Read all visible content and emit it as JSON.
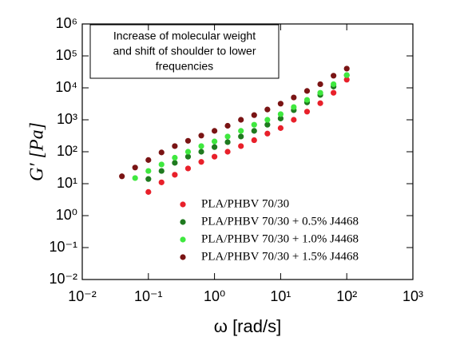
{
  "chart_data": {
    "type": "scatter",
    "x_label": "ω [rad/s]",
    "y_label": "G′ [Pa]",
    "annotation": [
      "Increase of molecular weight",
      "and shift of shoulder to lower",
      "frequencies"
    ],
    "xscale": "log",
    "yscale": "log",
    "legend": "lower right",
    "xlim": [
      0.01,
      1000
    ],
    "ylim": [
      0.01,
      1000000
    ],
    "xticks": [
      {
        "value": 0.01,
        "label": "10⁻²"
      },
      {
        "value": 0.1,
        "label": "10⁻¹"
      },
      {
        "value": 1,
        "label": "10⁰"
      },
      {
        "value": 10,
        "label": "10¹"
      },
      {
        "value": 100,
        "label": "10²"
      },
      {
        "value": 1000,
        "label": "10³"
      }
    ],
    "yticks": [
      {
        "value": 0.01,
        "label": "10⁻²"
      },
      {
        "value": 0.1,
        "label": "10⁻¹"
      },
      {
        "value": 1,
        "label": "10⁰"
      },
      {
        "value": 10,
        "label": "10¹"
      },
      {
        "value": 100,
        "label": "10²"
      },
      {
        "value": 1000,
        "label": "10³"
      },
      {
        "value": 10000,
        "label": "10⁴"
      },
      {
        "value": 100000,
        "label": "10⁵"
      },
      {
        "value": 1000000,
        "label": "10⁶"
      }
    ],
    "series": [
      {
        "name": "PLA/PHBV 70/30",
        "color": "#e8202a",
        "x": [
          0.1,
          0.158,
          0.251,
          0.398,
          0.631,
          1,
          1.58,
          2.51,
          3.98,
          6.31,
          10,
          15.8,
          25.1,
          39.8,
          63.1,
          100
        ],
        "values": [
          5.5,
          11,
          19,
          30,
          48,
          70,
          100,
          150,
          230,
          370,
          550,
          1000,
          1800,
          3300,
          7000,
          18000
        ]
      },
      {
        "name": "PLA/PHBV 70/30 + 0.5% J4468",
        "color": "#1f7a1f",
        "x": [
          0.1,
          0.158,
          0.251,
          0.398,
          0.631,
          1,
          1.58,
          2.51,
          3.98,
          6.31,
          10,
          15.8,
          25.1,
          39.8,
          63.1,
          100
        ],
        "values": [
          14,
          25,
          45,
          70,
          100,
          140,
          200,
          300,
          450,
          700,
          1100,
          2000,
          3500,
          6000,
          11000,
          25000
        ]
      },
      {
        "name": "PLA/PHBV 70/30 + 1.0% J4468",
        "color": "#3fe83f",
        "x": [
          0.063,
          0.1,
          0.158,
          0.251,
          0.398,
          0.631,
          1,
          1.58,
          2.51,
          3.98,
          6.31,
          10,
          15.8,
          25.1,
          39.8,
          63.1,
          100
        ],
        "values": [
          15,
          25,
          40,
          65,
          100,
          150,
          210,
          300,
          450,
          700,
          1000,
          1500,
          2500,
          4200,
          7000,
          13000,
          25000
        ]
      },
      {
        "name": "PLA/PHBV 70/30 + 1.5% J4468",
        "color": "#7a1414",
        "x": [
          0.0398,
          0.063,
          0.1,
          0.158,
          0.251,
          0.398,
          0.631,
          1,
          1.58,
          2.51,
          3.98,
          6.31,
          10,
          15.8,
          25.1,
          39.8,
          63.1,
          100
        ],
        "values": [
          17,
          32,
          55,
          95,
          150,
          220,
          320,
          450,
          650,
          1000,
          1400,
          2100,
          3200,
          5000,
          8000,
          13000,
          24000,
          40000
        ]
      }
    ]
  }
}
